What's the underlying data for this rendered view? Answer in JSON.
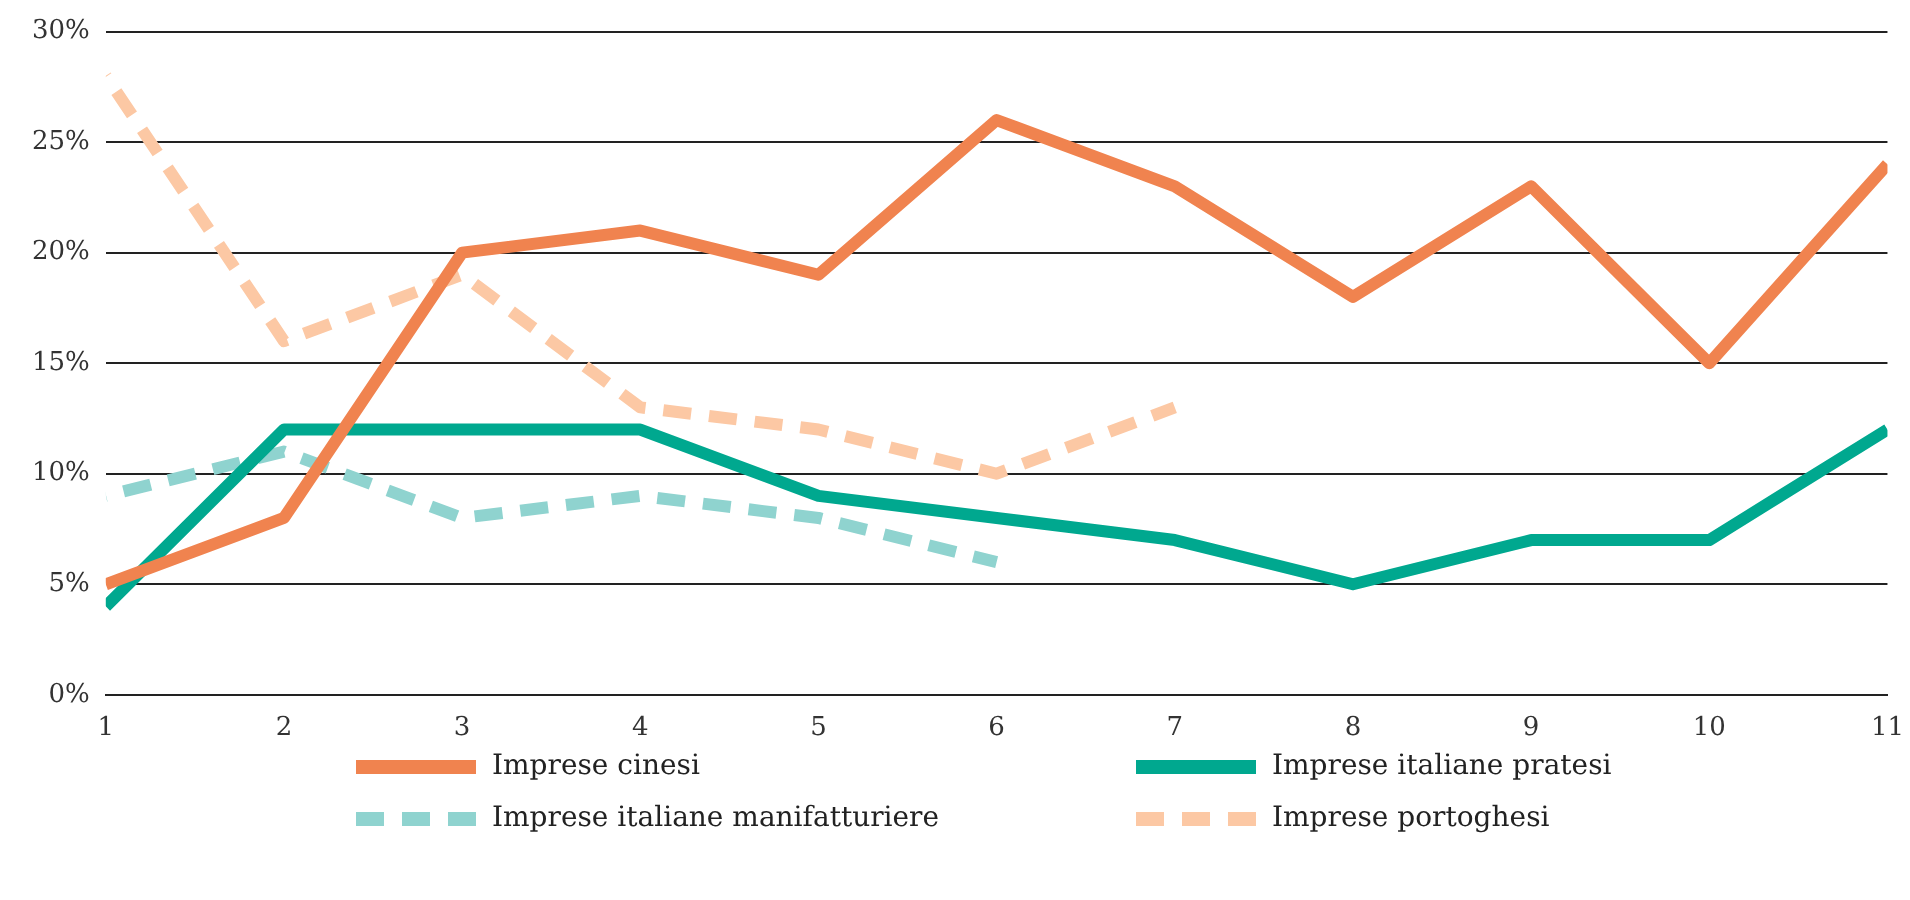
{
  "chart_data": {
    "type": "line",
    "x": [
      1,
      2,
      3,
      4,
      5,
      6,
      7,
      8,
      9,
      10,
      11
    ],
    "xlim": [
      1,
      11
    ],
    "xticks": [
      1,
      2,
      3,
      4,
      5,
      6,
      7,
      8,
      9,
      10,
      11
    ],
    "ylim": [
      0,
      30
    ],
    "yticks": [
      {
        "value": 0,
        "label": "0%"
      },
      {
        "value": 5,
        "label": "5%"
      },
      {
        "value": 10,
        "label": "10%"
      },
      {
        "value": 15,
        "label": "15%"
      },
      {
        "value": 20,
        "label": "20%"
      },
      {
        "value": 25,
        "label": "25%"
      },
      {
        "value": 30,
        "label": "30%"
      }
    ],
    "grid": "y",
    "legend": "bottom",
    "marker": "none",
    "series": [
      {
        "name": "Imprese cinesi",
        "color": "#f0834f",
        "line_style": "solid",
        "values": [
          5,
          8,
          20,
          21,
          19,
          26,
          23,
          18,
          23,
          15,
          24
        ]
      },
      {
        "name": "Imprese italiane pratesi",
        "color": "#00a88f",
        "line_style": "solid",
        "values": [
          4,
          12,
          12,
          12,
          9,
          8,
          7,
          5,
          7,
          7,
          12
        ]
      },
      {
        "name": "Imprese italiane manifatturiere",
        "color": "#8fd3cf",
        "line_style": "dashed",
        "values": [
          9,
          11,
          8,
          9,
          8,
          6,
          null,
          null,
          null,
          null,
          null
        ]
      },
      {
        "name": "Imprese portoghesi",
        "color": "#fcc8a4",
        "line_style": "dashed",
        "values": [
          28,
          16,
          19,
          13,
          12,
          10,
          13,
          null,
          null,
          null,
          null
        ]
      }
    ]
  }
}
